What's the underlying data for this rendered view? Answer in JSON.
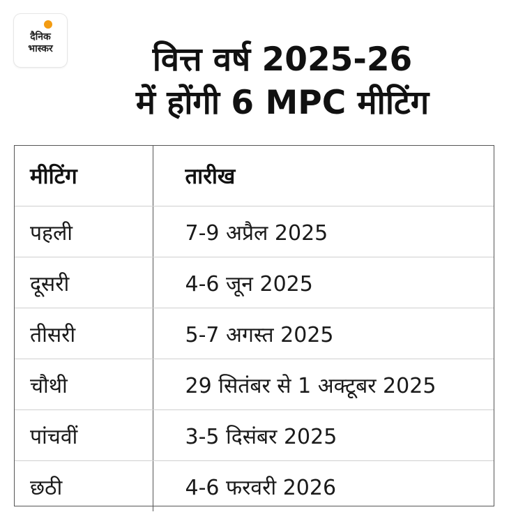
{
  "brand": {
    "line1": "दैनिक",
    "line2": "भास्कर",
    "accent_color": "#f39c12"
  },
  "title": {
    "line1": "वित्त वर्ष 2025-26",
    "line2": "में होंगी 6 MPC मीटिंग"
  },
  "table": {
    "headers": {
      "meeting": "मीटिंग",
      "date": "तारीख"
    },
    "rows": [
      {
        "meeting": "पहली",
        "date": "7-9 अप्रैल 2025"
      },
      {
        "meeting": "दूसरी",
        "date": "4-6 जून 2025"
      },
      {
        "meeting": "तीसरी",
        "date": "5-7 अगस्त 2025"
      },
      {
        "meeting": "चौथी",
        "date": "29 सितंबर से 1 अक्टूबर 2025"
      },
      {
        "meeting": "पांचवीं",
        "date": "3-5 दिसंबर 2025"
      },
      {
        "meeting": "छठी",
        "date": "4-6 फरवरी 2026"
      }
    ]
  }
}
